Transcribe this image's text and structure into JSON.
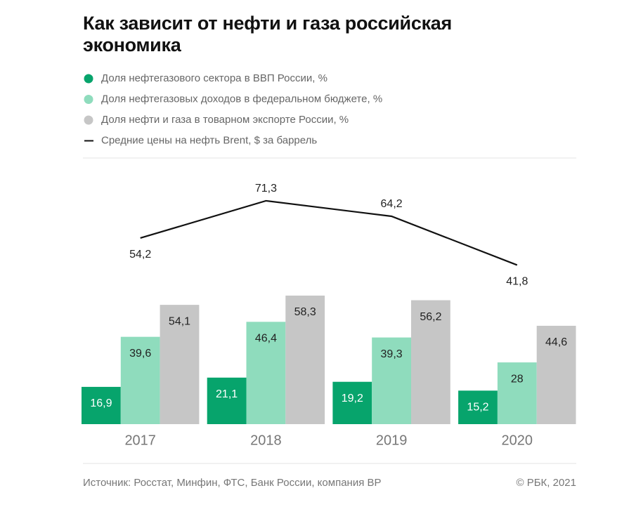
{
  "chart_data": {
    "type": "bar",
    "title": "Как зависит от нефти и газа российская экономика",
    "categories": [
      "2017",
      "2018",
      "2019",
      "2020"
    ],
    "series": [
      {
        "name": "Доля нефтегазового сектора в ВВП России, %",
        "color": "#07a46c",
        "values": [
          16.9,
          21.1,
          19.2,
          15.2
        ],
        "value_labels": [
          "16,9",
          "21,1",
          "19,2",
          "15,2"
        ]
      },
      {
        "name": "Доля нефтегазовых доходов в федеральном бюджете, %",
        "color": "#8fdcbd",
        "values": [
          39.6,
          46.4,
          39.3,
          28
        ],
        "value_labels": [
          "39,6",
          "46,4",
          "39,3",
          "28"
        ]
      },
      {
        "name": "Доля нефти и газа в товарном экспорте России, %",
        "color": "#c6c6c6",
        "values": [
          54.1,
          58.3,
          56.2,
          44.6
        ],
        "value_labels": [
          "54,1",
          "58,3",
          "56,2",
          "44,6"
        ]
      },
      {
        "name": "Средние цены на нефть Brent, $ за баррель",
        "color": "#111111",
        "type": "line",
        "values": [
          54.2,
          71.3,
          64.2,
          41.8
        ],
        "value_labels": [
          "54,2",
          "71,3",
          "64,2",
          "41,8"
        ]
      }
    ],
    "source": "Источник: Росстат, Минфин, ФТС, Банк России, компания BP",
    "credit": "© РБК, 2021"
  }
}
